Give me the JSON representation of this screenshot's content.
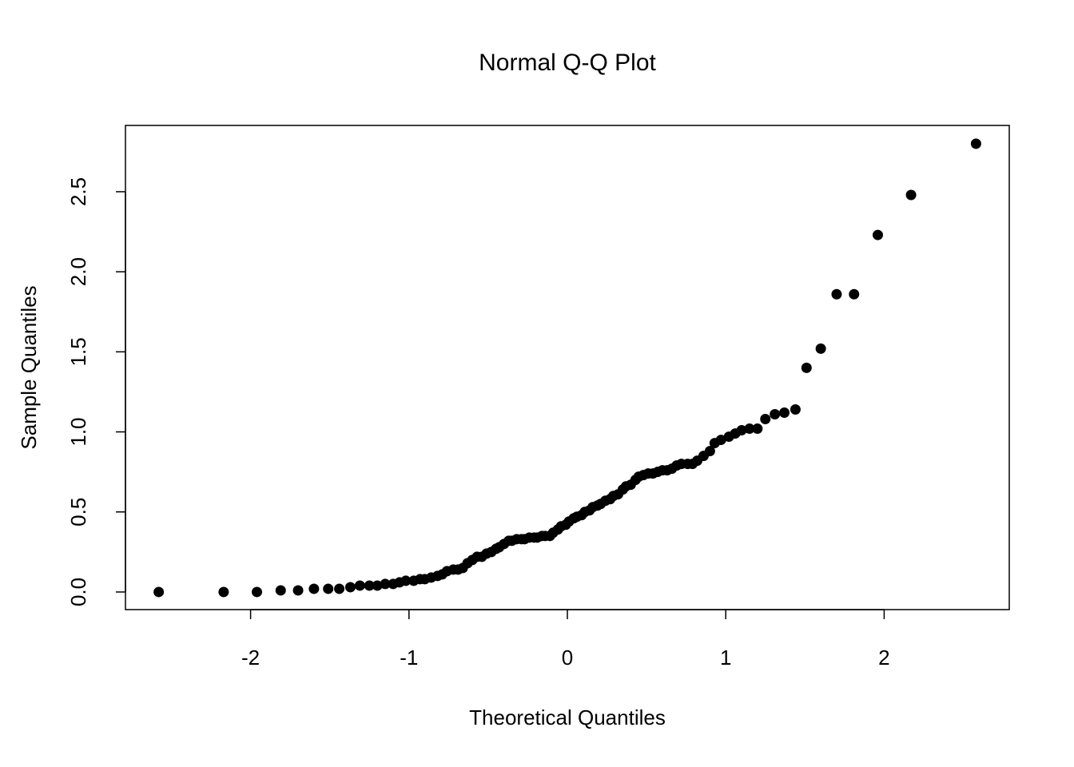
{
  "chart_data": {
    "type": "scatter",
    "title": "Normal Q-Q Plot",
    "x_label": "Theoretical Quantiles",
    "y_label": "Sample Quantiles",
    "x": [
      -2.58,
      -2.17,
      -1.96,
      -1.81,
      -1.7,
      -1.6,
      -1.51,
      -1.44,
      -1.37,
      -1.31,
      -1.25,
      -1.2,
      -1.15,
      -1.1,
      -1.06,
      -1.02,
      -0.97,
      -0.93,
      -0.9,
      -0.86,
      -0.82,
      -0.79,
      -0.76,
      -0.72,
      -0.69,
      -0.66,
      -0.63,
      -0.6,
      -0.57,
      -0.54,
      -0.51,
      -0.48,
      -0.45,
      -0.43,
      -0.4,
      -0.37,
      -0.35,
      -0.32,
      -0.29,
      -0.27,
      -0.24,
      -0.21,
      -0.19,
      -0.16,
      -0.14,
      -0.11,
      -0.09,
      -0.06,
      -0.04,
      -0.01,
      0.01,
      0.04,
      0.06,
      0.09,
      0.11,
      0.14,
      0.16,
      0.19,
      0.21,
      0.24,
      0.27,
      0.29,
      0.32,
      0.35,
      0.37,
      0.4,
      0.43,
      0.45,
      0.48,
      0.51,
      0.54,
      0.57,
      0.6,
      0.63,
      0.66,
      0.69,
      0.72,
      0.76,
      0.79,
      0.82,
      0.86,
      0.9,
      0.93,
      0.97,
      1.02,
      1.06,
      1.1,
      1.15,
      1.2,
      1.25,
      1.31,
      1.37,
      1.44,
      1.51,
      1.6,
      1.7,
      1.81,
      1.96,
      2.17,
      2.58
    ],
    "values": [
      0.0,
      0.0,
      0.0,
      0.01,
      0.01,
      0.02,
      0.02,
      0.02,
      0.03,
      0.04,
      0.04,
      0.04,
      0.05,
      0.05,
      0.06,
      0.07,
      0.07,
      0.08,
      0.08,
      0.09,
      0.1,
      0.11,
      0.13,
      0.14,
      0.14,
      0.15,
      0.18,
      0.2,
      0.22,
      0.22,
      0.24,
      0.25,
      0.27,
      0.28,
      0.3,
      0.32,
      0.32,
      0.33,
      0.33,
      0.33,
      0.34,
      0.34,
      0.34,
      0.35,
      0.35,
      0.35,
      0.37,
      0.39,
      0.41,
      0.42,
      0.44,
      0.46,
      0.47,
      0.48,
      0.5,
      0.51,
      0.53,
      0.54,
      0.55,
      0.57,
      0.58,
      0.6,
      0.61,
      0.64,
      0.66,
      0.67,
      0.7,
      0.72,
      0.73,
      0.74,
      0.74,
      0.75,
      0.76,
      0.76,
      0.77,
      0.79,
      0.8,
      0.8,
      0.8,
      0.82,
      0.85,
      0.88,
      0.93,
      0.95,
      0.97,
      0.99,
      1.01,
      1.02,
      1.02,
      1.08,
      1.11,
      1.12,
      1.14,
      1.4,
      1.52,
      1.86,
      1.86,
      2.23,
      2.48,
      2.8
    ],
    "color": "#000000",
    "xlim": [
      -2.79,
      2.79
    ],
    "ylim": [
      -0.11,
      2.914
    ],
    "xticks": [
      -2,
      -1,
      0,
      1,
      2
    ],
    "yticks": [
      {
        "value": 0,
        "label": "0.0"
      },
      0.5,
      {
        "value": 1,
        "label": "1.0"
      },
      1.5,
      {
        "value": 2,
        "label": "2.0"
      },
      2.5
    ]
  }
}
